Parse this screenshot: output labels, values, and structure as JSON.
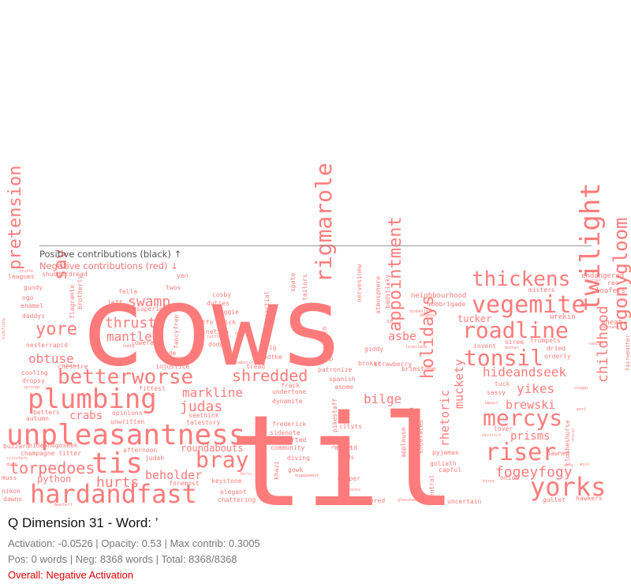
{
  "chart_data": {
    "type": "wordcloud",
    "word_color": "#ff7b7b",
    "words": [
      {
        "text": "cows",
        "weight": 140
      },
      {
        "text": "til",
        "weight": 160
      },
      {
        "text": "unpleasantness",
        "weight": 36
      },
      {
        "text": "hardandfast",
        "weight": 32
      },
      {
        "text": "plumbing",
        "weight": 34
      },
      {
        "text": "tis",
        "weight": 36
      },
      {
        "text": "betterworse",
        "weight": 26
      },
      {
        "text": "yorks",
        "weight": 32
      },
      {
        "text": "vegemite",
        "weight": 30
      },
      {
        "text": "roadline",
        "weight": 28
      },
      {
        "text": "twilight",
        "weight": 34
      },
      {
        "text": "riser",
        "weight": 30
      },
      {
        "text": "mercys",
        "weight": 28
      },
      {
        "text": "tonsil",
        "weight": 28
      },
      {
        "text": "thickens",
        "weight": 26
      },
      {
        "text": "rigmarole",
        "weight": 28
      },
      {
        "text": "bray",
        "weight": 28
      },
      {
        "text": "agonygloom",
        "weight": 24
      },
      {
        "text": "appointment",
        "weight": 22
      },
      {
        "text": "holidays",
        "weight": 22
      },
      {
        "text": "pretension",
        "weight": 22
      },
      {
        "text": "sav",
        "weight": 22
      },
      {
        "text": "yore",
        "weight": 22
      },
      {
        "text": "torpedoes",
        "weight": 20
      },
      {
        "text": "shredded",
        "weight": 20
      },
      {
        "text": "swamp",
        "weight": 18
      },
      {
        "text": "thrust",
        "weight": 18
      },
      {
        "text": "fogeyfogy",
        "weight": 18
      },
      {
        "text": "judas",
        "weight": 18
      },
      {
        "text": "hurts",
        "weight": 18
      },
      {
        "text": "childhood",
        "weight": 18
      },
      {
        "text": "hideandseek",
        "weight": 16
      },
      {
        "text": "yikes",
        "weight": 16
      },
      {
        "text": "obtuse",
        "weight": 16
      },
      {
        "text": "mantle",
        "weight": 16
      },
      {
        "text": "markline",
        "weight": 16
      },
      {
        "text": "beholder",
        "weight": 15
      },
      {
        "text": "brewski",
        "weight": 15
      },
      {
        "text": "prisms",
        "weight": 14
      },
      {
        "text": "bilge",
        "weight": 16
      },
      {
        "text": "asbe",
        "weight": 15
      },
      {
        "text": "muckety",
        "weight": 15
      },
      {
        "text": "rhetoric",
        "weight": 15
      },
      {
        "text": "crabs",
        "weight": 14
      },
      {
        "text": "python",
        "weight": 12
      },
      {
        "text": "roundabouts",
        "weight": 12
      },
      {
        "text": "tucker",
        "weight": 12
      },
      {
        "text": "wrekin",
        "weight": 9
      },
      {
        "text": "endangered",
        "weight": 9
      },
      {
        "text": "loafers",
        "weight": 9
      },
      {
        "text": "wheat",
        "weight": 9
      },
      {
        "text": "neighbourhood",
        "weight": 9
      },
      {
        "text": "mobbrigade",
        "weight": 8
      },
      {
        "text": "brimstone",
        "weight": 8
      },
      {
        "text": "giddy",
        "weight": 8
      },
      {
        "text": "broker",
        "weight": 8
      },
      {
        "text": "patronize",
        "weight": 8
      },
      {
        "text": "spanish",
        "weight": 8
      },
      {
        "text": "asome",
        "weight": 8
      },
      {
        "text": "cityts",
        "weight": 8
      },
      {
        "text": "unsaid",
        "weight": 8
      },
      {
        "text": "dads",
        "weight": 8
      },
      {
        "text": "gipper",
        "weight": 8
      },
      {
        "text": "considered",
        "weight": 8
      },
      {
        "text": "uncertain",
        "weight": 8
      },
      {
        "text": "capful",
        "weight": 8
      },
      {
        "text": "pyjamas",
        "weight": 8
      },
      {
        "text": "goliath",
        "weight": 8
      },
      {
        "text": "tuck",
        "weight": 8
      },
      {
        "text": "sassy",
        "weight": 8
      },
      {
        "text": "lover",
        "weight": 8
      },
      {
        "text": "siree",
        "weight": 8
      },
      {
        "text": "trumpets",
        "weight": 8
      },
      {
        "text": "dried",
        "weight": 8
      },
      {
        "text": "orderly",
        "weight": 8
      },
      {
        "text": "invent",
        "weight": 8
      },
      {
        "text": "dawned",
        "weight": 8
      },
      {
        "text": "onion",
        "weight": 8
      },
      {
        "text": "gullet",
        "weight": 8
      },
      {
        "text": "hawkers",
        "weight": 8
      },
      {
        "text": "misters",
        "weight": 8
      },
      {
        "text": "rec",
        "weight": 8
      },
      {
        "text": "clotheshorse",
        "weight": 8
      },
      {
        "text": "jeff",
        "weight": 8
      },
      {
        "text": "fella",
        "weight": 8
      },
      {
        "text": "twos",
        "weight": 8
      },
      {
        "text": "yen",
        "weight": 8
      },
      {
        "text": "superiority",
        "weight": 8
      },
      {
        "text": "leagues",
        "weight": 8
      },
      {
        "text": "shudderdread",
        "weight": 8
      },
      {
        "text": "gundy",
        "weight": 8
      },
      {
        "text": "ngo",
        "weight": 8
      },
      {
        "text": "enamel",
        "weight": 8
      },
      {
        "text": "daddys",
        "weight": 8
      },
      {
        "text": "nesterrapid",
        "weight": 8
      },
      {
        "text": "cooling",
        "weight": 8
      },
      {
        "text": "dropsy",
        "weight": 8
      },
      {
        "text": "cheshire",
        "weight": 8
      },
      {
        "text": "autumn",
        "weight": 8
      },
      {
        "text": "betters",
        "weight": 8
      },
      {
        "text": "buzzard",
        "weight": 8
      },
      {
        "text": "hideandgoseek",
        "weight": 8
      },
      {
        "text": "champagne titter",
        "weight": 8
      },
      {
        "text": "muss",
        "weight": 8
      },
      {
        "text": "nikon",
        "weight": 8
      },
      {
        "text": "dawns",
        "weight": 8
      },
      {
        "text": "cosby",
        "weight": 8
      },
      {
        "text": "duties",
        "weight": 8
      },
      {
        "text": "doggie",
        "weight": 8
      },
      {
        "text": "gtfo chick",
        "weight": 8
      },
      {
        "text": "nettle",
        "weight": 8
      },
      {
        "text": "dodgy",
        "weight": 8
      },
      {
        "text": "lowered",
        "weight": 8
      },
      {
        "text": "rede",
        "weight": 8
      },
      {
        "text": "injustice",
        "weight": 8
      },
      {
        "text": "fittest",
        "weight": 8
      },
      {
        "text": "opinions",
        "weight": 8
      },
      {
        "text": "unwritten",
        "weight": 8
      },
      {
        "text": "seethink",
        "weight": 8
      },
      {
        "text": "talestory",
        "weight": 8
      },
      {
        "text": "afternoon",
        "weight": 8
      },
      {
        "text": "judah",
        "weight": 8
      },
      {
        "text": "foremost",
        "weight": 8
      },
      {
        "text": "keystone",
        "weight": 8
      },
      {
        "text": "elegant",
        "weight": 8
      },
      {
        "text": "chattering",
        "weight": 8
      },
      {
        "text": "tread",
        "weight": 8
      },
      {
        "text": "frack",
        "weight": 8
      },
      {
        "text": "undertone",
        "weight": 8
      },
      {
        "text": "dynamite",
        "weight": 8
      },
      {
        "text": "frederick",
        "weight": 8
      },
      {
        "text": "sidenote",
        "weight": 8
      },
      {
        "text": "converted",
        "weight": 8
      },
      {
        "text": "community",
        "weight": 8
      },
      {
        "text": "diving",
        "weight": 8
      },
      {
        "text": "gowk",
        "weight": 8
      },
      {
        "text": "rig",
        "weight": 8
      },
      {
        "text": "godthe",
        "weight": 8
      },
      {
        "text": "damp",
        "weight": 8
      },
      {
        "text": "strawberry",
        "weight": 8
      },
      {
        "text": "applause",
        "weight": 8
      },
      {
        "text": "kumara",
        "weight": 8
      },
      {
        "text": "shoelaces",
        "weight": 8
      },
      {
        "text": "impartial",
        "weight": 8
      },
      {
        "text": "fancyfree",
        "weight": 8
      },
      {
        "text": "spate",
        "weight": 8
      },
      {
        "text": "tailors",
        "weight": 8
      },
      {
        "text": "pennorth",
        "weight": 8
      },
      {
        "text": "nervesinew",
        "weight": 8
      },
      {
        "text": "atmosphere",
        "weight": 8
      },
      {
        "text": "badsticky",
        "weight": 8
      },
      {
        "text": "brotherly",
        "weight": 8
      },
      {
        "text": "flagrante",
        "weight": 8
      },
      {
        "text": "pikestaff",
        "weight": 8
      },
      {
        "text": "khazi",
        "weight": 8
      },
      {
        "text": "central",
        "weight": 8
      },
      {
        "text": "fairweather",
        "weight": 7
      },
      {
        "text": "se",
        "weight": 7
      }
    ],
    "tiny_words": [
      {
        "text": "stuffe"
      },
      {
        "text": "kidsfishy"
      },
      {
        "text": "stutter"
      },
      {
        "text": "springs"
      },
      {
        "text": "circulars"
      },
      {
        "text": "doody"
      },
      {
        "text": "dwarbott"
      },
      {
        "text": "batter"
      },
      {
        "text": "anestand"
      },
      {
        "text": "radish"
      },
      {
        "text": "cougar"
      },
      {
        "text": "wori"
      },
      {
        "text": "mist"
      },
      {
        "text": "unical"
      },
      {
        "text": "bissy"
      },
      {
        "text": "impact"
      },
      {
        "text": "district"
      },
      {
        "text": "disbelief"
      },
      {
        "text": "despond"
      },
      {
        "text": "linesland"
      },
      {
        "text": "champions"
      },
      {
        "text": "scorpions"
      },
      {
        "text": "engagement"
      },
      {
        "text": "forlo"
      },
      {
        "text": "bargaining"
      },
      {
        "text": "rattles"
      },
      {
        "text": "hobby"
      },
      {
        "text": "doesnot"
      },
      {
        "text": "bandhorst"
      },
      {
        "text": "glassbake"
      },
      {
        "text": "mother"
      },
      {
        "text": "acts"
      }
    ]
  },
  "legend": {
    "positive": "Positive contributions (black) ↑",
    "negative": "Negative contributions (red) ↓"
  },
  "info": {
    "title": "Q Dimension 31 - Word: ’",
    "stats1": "Activation: -0.0526 | Opacity: 0.53 | Max contrib: 0.3005",
    "stats2": "Pos: 0 words | Neg: 8368 words | Total: 8368/8368",
    "overall": "Overall: Negative Activation"
  }
}
